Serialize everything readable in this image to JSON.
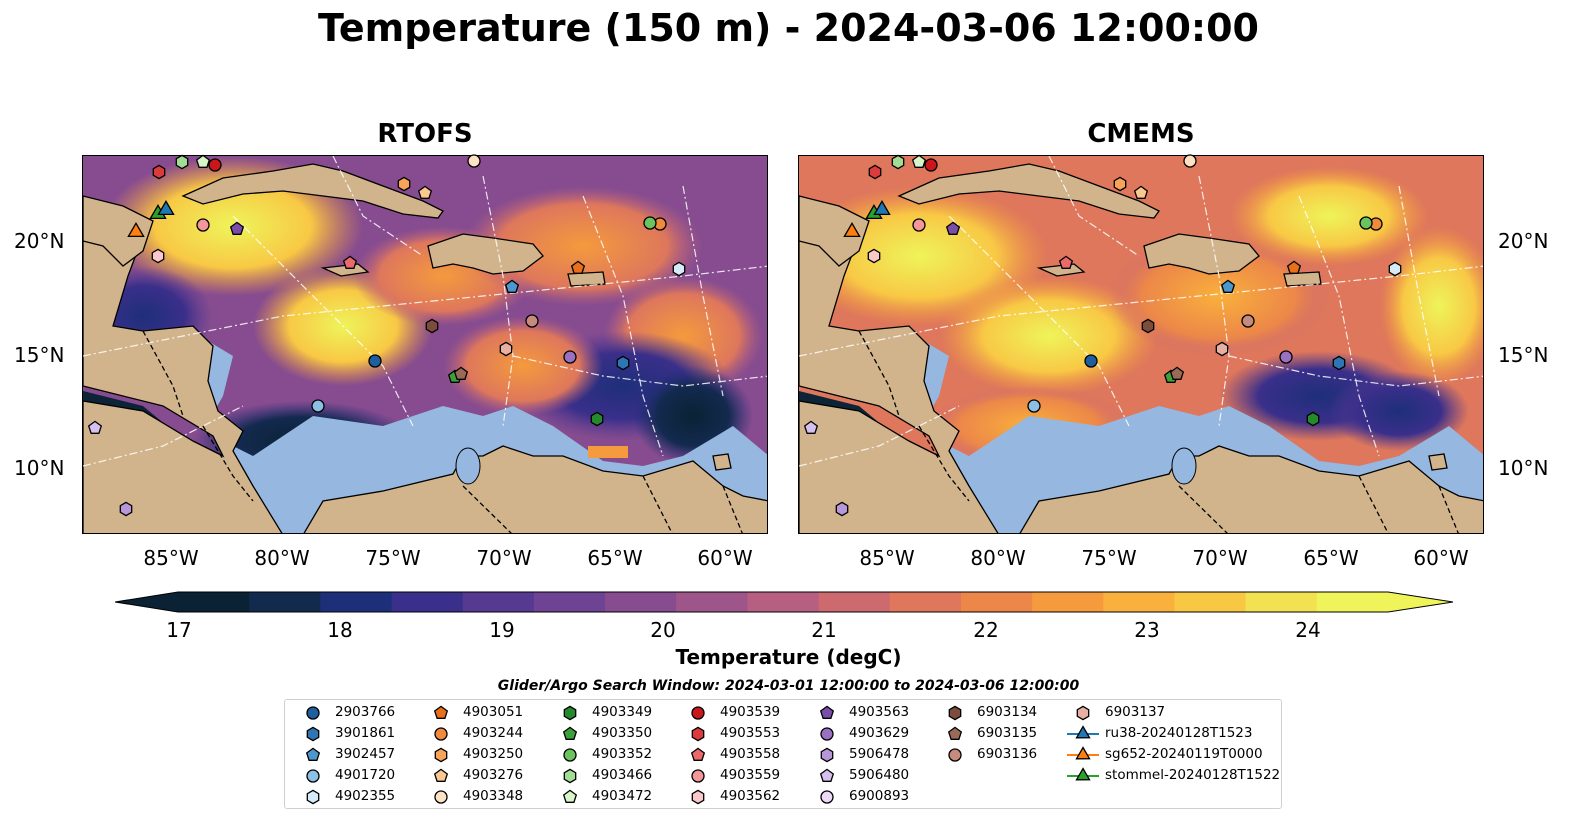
{
  "title": "Temperature (150 m) - 2024-03-06 12:00:00",
  "panels": [
    {
      "title": "RTOFS"
    },
    {
      "title": "CMEMS"
    }
  ],
  "lat_ticks": [
    "20°N",
    "15°N",
    "10°N"
  ],
  "lon_ticks": [
    "85°W",
    "80°W",
    "75°W",
    "70°W",
    "65°W",
    "60°W"
  ],
  "colorbar": {
    "label": "Temperature (degC)",
    "ticks": [
      "17",
      "18",
      "19",
      "20",
      "21",
      "22",
      "23",
      "24"
    ],
    "range": [
      16.75,
      24.5
    ],
    "extend": "both",
    "colors": [
      "#0a2234",
      "#132a4f",
      "#1e2f7a",
      "#3a2f8a",
      "#563a91",
      "#6e4393",
      "#864c8f",
      "#9e568a",
      "#b65f80",
      "#cc6a70",
      "#de775c",
      "#ec8749",
      "#f59a3d",
      "#f9b03c",
      "#f8c845",
      "#f2e252",
      "#eef45a"
    ]
  },
  "search_window": "Glider/Argo Search Window: 2024-03-01 12:00:00 to 2024-03-06 12:00:00",
  "map_colors": {
    "land": "#d2b48c",
    "shelf": "#95b7e0",
    "deep": "#0d2436"
  },
  "legend": [
    {
      "label": "2903766",
      "marker": "circle",
      "color": "#1f5fa0"
    },
    {
      "label": "3901861",
      "marker": "hexagon",
      "color": "#2e76b3"
    },
    {
      "label": "3902457",
      "marker": "pentagon",
      "color": "#4d97cf"
    },
    {
      "label": "4901720",
      "marker": "circle",
      "color": "#8cc0e6"
    },
    {
      "label": "4902355",
      "marker": "hexagon",
      "color": "#d5ecf8"
    },
    {
      "label": "4903051",
      "marker": "pentagon",
      "color": "#e8701a"
    },
    {
      "label": "4903244",
      "marker": "circle",
      "color": "#f08a3c"
    },
    {
      "label": "4903250",
      "marker": "hexagon",
      "color": "#f7a35a"
    },
    {
      "label": "4903276",
      "marker": "pentagon",
      "color": "#fbc891"
    },
    {
      "label": "4903348",
      "marker": "circle",
      "color": "#fde2c4"
    },
    {
      "label": "4903349",
      "marker": "hexagon",
      "color": "#258a2b"
    },
    {
      "label": "4903350",
      "marker": "pentagon",
      "color": "#3da03a"
    },
    {
      "label": "4903352",
      "marker": "circle",
      "color": "#6cc45f"
    },
    {
      "label": "4903466",
      "marker": "hexagon",
      "color": "#a2dd94"
    },
    {
      "label": "4903472",
      "marker": "pentagon",
      "color": "#d6f5c8"
    },
    {
      "label": "4903539",
      "marker": "circle",
      "color": "#c9181c"
    },
    {
      "label": "4903553",
      "marker": "hexagon",
      "color": "#dc3b3e"
    },
    {
      "label": "4903558",
      "marker": "pentagon",
      "color": "#ea6a6b"
    },
    {
      "label": "4903559",
      "marker": "circle",
      "color": "#f3979a"
    },
    {
      "label": "4903562",
      "marker": "hexagon",
      "color": "#fbc8c9"
    },
    {
      "label": "4903563",
      "marker": "pentagon",
      "color": "#7a4ea8"
    },
    {
      "label": "4903629",
      "marker": "circle",
      "color": "#9a71c2"
    },
    {
      "label": "5906478",
      "marker": "hexagon",
      "color": "#b797d8"
    },
    {
      "label": "5906480",
      "marker": "pentagon",
      "color": "#d6c1ee"
    },
    {
      "label": "6900893",
      "marker": "circle",
      "color": "#eed8f8"
    },
    {
      "label": "6903134",
      "marker": "hexagon",
      "color": "#7c4d3c"
    },
    {
      "label": "6903135",
      "marker": "pentagon",
      "color": "#9a6a58"
    },
    {
      "label": "6903136",
      "marker": "circle",
      "color": "#c58b7d"
    },
    {
      "label": "6903137",
      "marker": "hexagon",
      "color": "#e8b0a2"
    },
    {
      "label": "ru38-20240128T1523",
      "marker": "triangle-line",
      "color": "#1f77b4"
    },
    {
      "label": "sg652-20240119T0000",
      "marker": "triangle-line",
      "color": "#ff7f0e"
    },
    {
      "label": "stommel-20240128T1522",
      "marker": "triangle-line",
      "color": "#2ca02c"
    }
  ]
}
